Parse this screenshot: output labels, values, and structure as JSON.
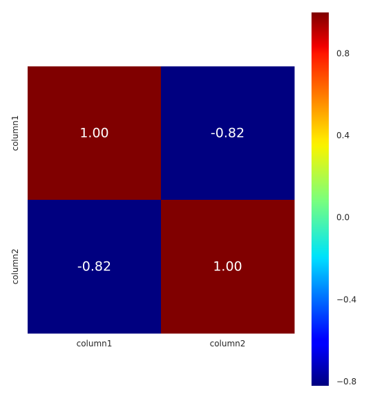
{
  "chart_data": {
    "type": "heatmap",
    "title": "",
    "x_categories": [
      "column1",
      "column2"
    ],
    "y_categories": [
      "column1",
      "column2"
    ],
    "values": [
      [
        1.0,
        -0.82
      ],
      [
        -0.82,
        1.0
      ]
    ],
    "annotations": [
      [
        "1.00",
        "-0.82"
      ],
      [
        "-0.82",
        "1.00"
      ]
    ],
    "colormap": "jet",
    "vmin": -0.82,
    "vmax": 1.0,
    "colorbar": {
      "ticks": [
        0.8,
        0.4,
        0.0,
        -0.4,
        -0.8
      ],
      "tick_labels": [
        "0.8",
        "0.4",
        "0.0",
        "−0.4",
        "−0.8"
      ],
      "placement": "right"
    },
    "grid": false
  }
}
